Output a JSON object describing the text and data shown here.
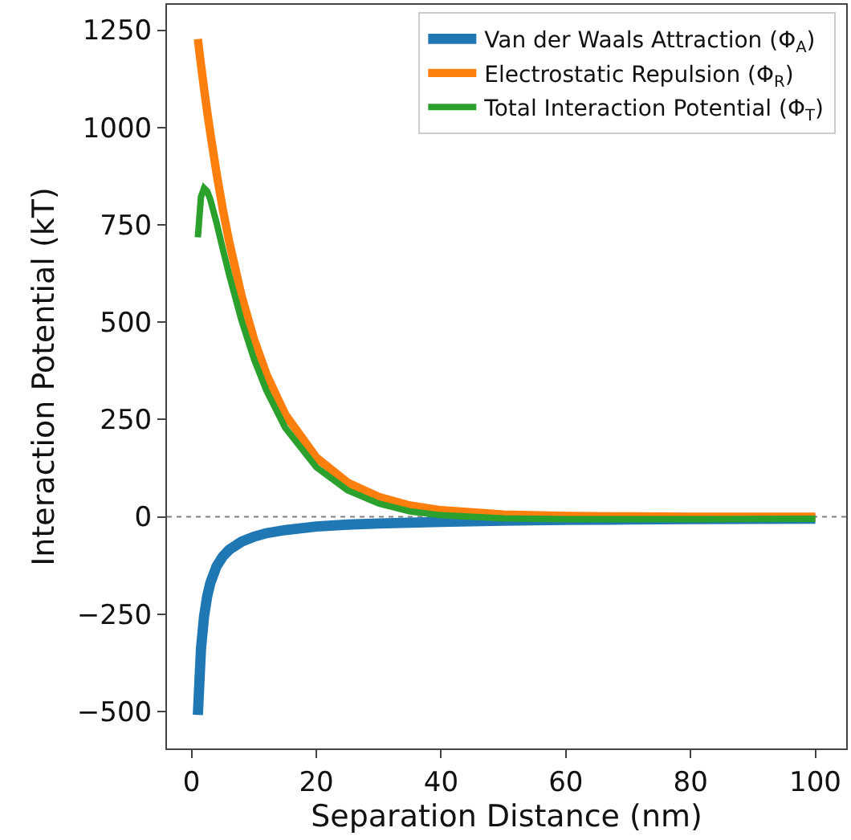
{
  "chart_data": {
    "type": "line",
    "xlabel": "Separation Distance (nm)",
    "ylabel": "Interaction Potential (kT)",
    "x": [
      1,
      1.5,
      2,
      2.5,
      3,
      4,
      5,
      6,
      8,
      10,
      12,
      15,
      20,
      25,
      30,
      35,
      40,
      50,
      60,
      70,
      80,
      100
    ],
    "series": [
      {
        "name": "Van der Waals Attraction (Φ$_{A}$)",
        "color": "#1f77b4",
        "values": [
          -509,
          -339,
          -255,
          -204,
          -170,
          -127,
          -102,
          -85,
          -64,
          -51,
          -42,
          -34,
          -25,
          -20,
          -17,
          -15,
          -13,
          -10,
          -8,
          -7,
          -6,
          -5
        ]
      },
      {
        "name": "Electrostatic Repulsion (Φ$_{R}$)",
        "color": "#ff7f0e",
        "values": [
          1227,
          1161,
          1099,
          1040,
          985,
          882,
          790,
          708,
          568,
          456,
          366,
          263,
          152,
          88,
          51,
          29,
          17,
          6,
          2,
          1,
          0,
          0
        ]
      },
      {
        "name": "Total Interaction Potential (Φ$_{T}$)",
        "color": "#2ca02c",
        "values": [
          718,
          822,
          844,
          836,
          815,
          755,
          688,
          623,
          504,
          405,
          324,
          229,
          127,
          68,
          34,
          14,
          4,
          -4,
          -6,
          -6,
          -6,
          -5
        ]
      }
    ],
    "xlim": [
      -3.95,
      104.95
    ],
    "ylim": [
      -595,
      1315
    ],
    "xticks": [
      0,
      20,
      40,
      60,
      80,
      100
    ],
    "yticks": [
      -500,
      -250,
      0,
      250,
      500,
      750,
      1000,
      1250
    ],
    "ref_lines": [
      {
        "axis": "y",
        "value": 0,
        "color": "#808080",
        "line_style": "dotted"
      }
    ],
    "grid": false,
    "legend": "top right",
    "line_style": "solid",
    "marker": "none"
  }
}
